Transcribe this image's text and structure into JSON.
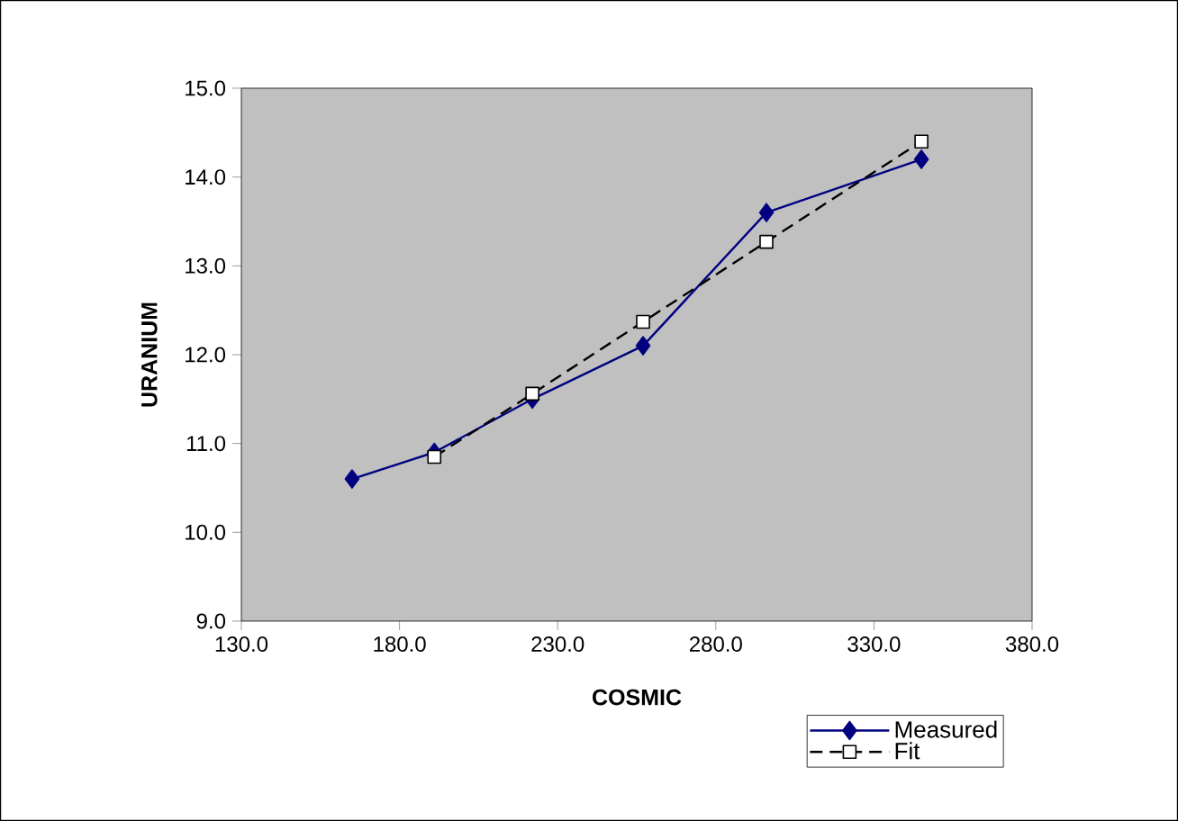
{
  "chart_data": {
    "type": "line",
    "xlabel": "COSMIC",
    "ylabel": "URANIUM",
    "xlim": [
      130,
      380
    ],
    "ylim": [
      9,
      15
    ],
    "xticks": [
      {
        "value": 130,
        "label": "130.0"
      },
      {
        "value": 180,
        "label": "180.0"
      },
      {
        "value": 230,
        "label": "230.0"
      },
      {
        "value": 280,
        "label": "280.0"
      },
      {
        "value": 330,
        "label": "330.0"
      },
      {
        "value": 380,
        "label": "380.0"
      }
    ],
    "yticks": [
      {
        "value": 9,
        "label": "9.0"
      },
      {
        "value": 10,
        "label": "10.0"
      },
      {
        "value": 11,
        "label": "11.0"
      },
      {
        "value": 12,
        "label": "12.0"
      },
      {
        "value": 13,
        "label": "13.0"
      },
      {
        "value": 14,
        "label": "14.0"
      },
      {
        "value": 15,
        "label": "15.0"
      }
    ],
    "grid": false,
    "legend": "bottom right",
    "series": [
      {
        "name": "Measured",
        "color": "#000080",
        "marker": "diamond",
        "line_style": "solid",
        "x": [
          165,
          191,
          222,
          257,
          296,
          345
        ],
        "values": [
          10.6,
          10.9,
          11.5,
          12.1,
          13.6,
          14.2
        ]
      },
      {
        "name": "Fit",
        "color": "#000000",
        "marker": "square",
        "line_style": "dashed",
        "x": [
          191,
          222,
          257,
          296,
          345
        ],
        "values": [
          10.85,
          11.56,
          12.37,
          13.27,
          14.4
        ]
      }
    ]
  }
}
